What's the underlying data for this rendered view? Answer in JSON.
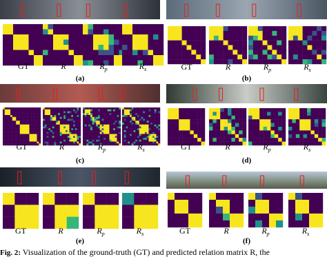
{
  "panels": [
    {
      "tag": "(a)",
      "labels": [
        {
          "main": "GT"
        },
        {
          "main": "R"
        },
        {
          "main": "R",
          "sub": "p"
        },
        {
          "main": "R",
          "sub": "s"
        }
      ]
    },
    {
      "tag": "(b)",
      "labels": [
        {
          "main": "GT"
        },
        {
          "main": "R"
        },
        {
          "main": "R",
          "sub": "p"
        },
        {
          "main": "R",
          "sub": "s"
        }
      ]
    },
    {
      "tag": "(c)",
      "labels": [
        {
          "main": "GT"
        },
        {
          "main": "R"
        },
        {
          "main": "R",
          "sub": "p"
        },
        {
          "main": "R",
          "sub": "s"
        }
      ]
    },
    {
      "tag": "(d)",
      "labels": [
        {
          "main": "GT"
        },
        {
          "main": "R"
        },
        {
          "main": "R",
          "sub": "p"
        },
        {
          "main": "R",
          "sub": "s"
        }
      ]
    },
    {
      "tag": "(e)",
      "labels": [
        {
          "main": "GT"
        },
        {
          "main": "R"
        },
        {
          "main": "R",
          "sub": "p"
        },
        {
          "main": "R",
          "sub": "s"
        }
      ]
    },
    {
      "tag": "(f)",
      "labels": [
        {
          "main": "GT"
        },
        {
          "main": "R"
        },
        {
          "main": "R",
          "sub": "p"
        },
        {
          "main": "R",
          "sub": "s"
        }
      ]
    }
  ],
  "caption": {
    "lead": "Fig. 2:",
    "text": "Visualization of the ground-truth (GT) and predicted relation matrix R, the"
  }
}
